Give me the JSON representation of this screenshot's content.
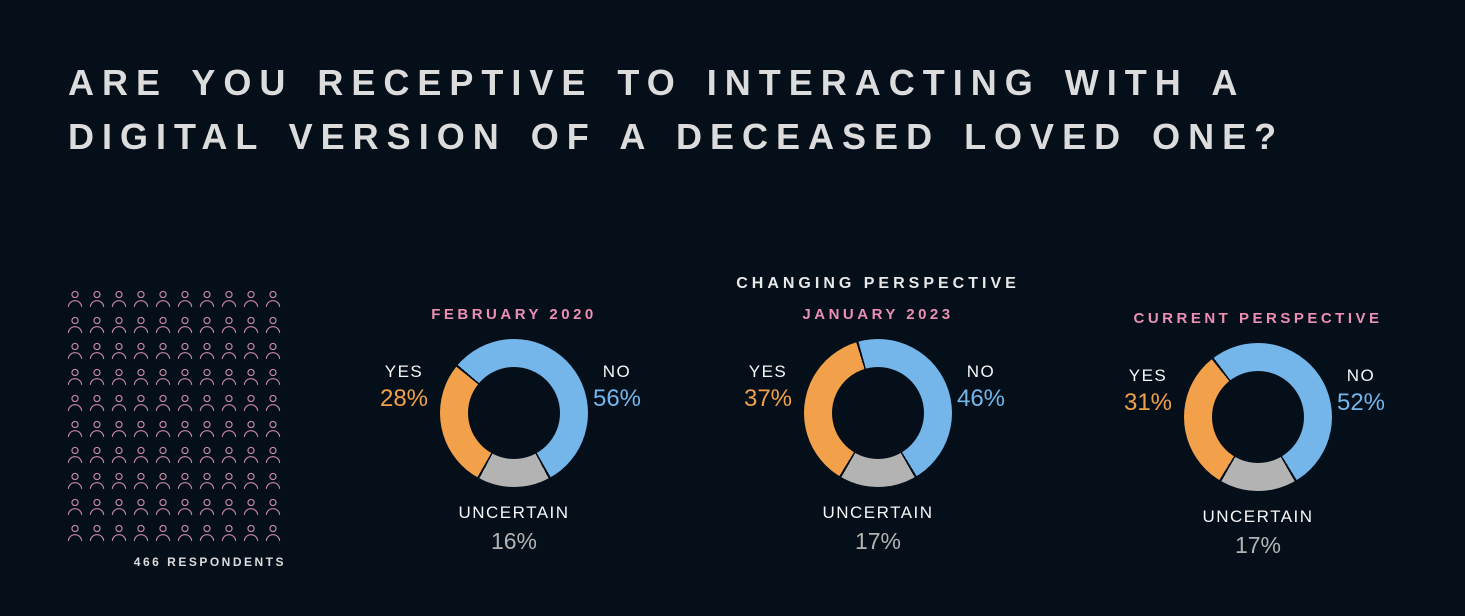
{
  "title": {
    "line1": "ARE YOU RECEPTIVE TO INTERACTING WITH A",
    "line2": "DIGITAL VERSION OF A DECEASED LOVED ONE?"
  },
  "respondents": {
    "label": "466 RESPONDENTS",
    "rows": 10,
    "cols": 10
  },
  "colors": {
    "bg": "#040f1a",
    "yes": "#f2a04a",
    "no": "#74b5ea",
    "uncertain": "#b3b3b3",
    "pink": "#ec8fb2",
    "icon": "#cc8aa5",
    "heading": "#dcdcdc",
    "label": "#f7f7f7"
  },
  "chart_data": [
    {
      "type": "donut",
      "eyebrow": "",
      "title": "FEBRUARY 2020",
      "legend_position": "around",
      "segments": [
        {
          "label": "YES",
          "value": 28,
          "value_label": "28%",
          "color": "#f2a04a"
        },
        {
          "label": "NO",
          "value": 56,
          "value_label": "56%",
          "color": "#74b5ea"
        },
        {
          "label": "UNCERTAIN",
          "value": 16,
          "value_label": "16%",
          "color": "#b3b3b3"
        }
      ]
    },
    {
      "type": "donut",
      "eyebrow": "CHANGING PERSPECTIVE",
      "title": "JANUARY 2023",
      "legend_position": "around",
      "segments": [
        {
          "label": "YES",
          "value": 37,
          "value_label": "37%",
          "color": "#f2a04a"
        },
        {
          "label": "NO",
          "value": 46,
          "value_label": "46%",
          "color": "#74b5ea"
        },
        {
          "label": "UNCERTAIN",
          "value": 17,
          "value_label": "17%",
          "color": "#b3b3b3"
        }
      ]
    },
    {
      "type": "donut",
      "eyebrow": "",
      "title": "CURRENT PERSPECTIVE",
      "legend_position": "around",
      "segments": [
        {
          "label": "YES",
          "value": 31,
          "value_label": "31%",
          "color": "#f2a04a"
        },
        {
          "label": "NO",
          "value": 52,
          "value_label": "52%",
          "color": "#74b5ea"
        },
        {
          "label": "UNCERTAIN",
          "value": 17,
          "value_label": "17%",
          "color": "#b3b3b3"
        }
      ]
    }
  ]
}
